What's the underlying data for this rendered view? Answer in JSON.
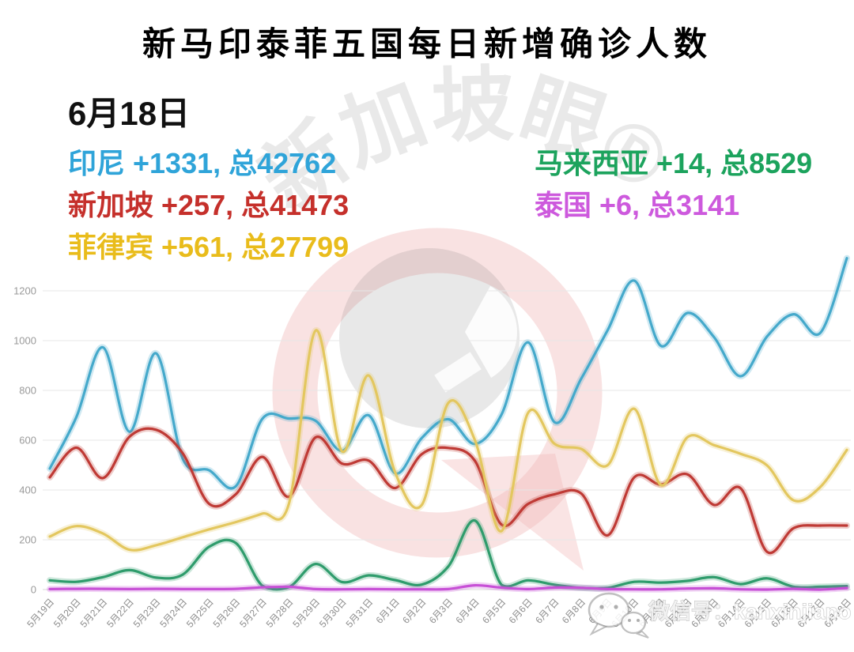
{
  "header": {
    "title": "新马印泰菲五国每日新增确诊人数",
    "date_label": "6月18日"
  },
  "legend": {
    "left": [
      {
        "id": "indonesia",
        "label": "印尼 +1331, 总42762",
        "color": "#2FA4D9"
      },
      {
        "id": "singapore",
        "label": "新加坡 +257, 总41473",
        "color": "#C5302B"
      },
      {
        "id": "philippines",
        "label": "菲律宾 +561, 总27799",
        "color": "#E9BC1B"
      }
    ],
    "right": [
      {
        "id": "malaysia",
        "label": "马来西亚 +14, 总8529",
        "color": "#1CA35D"
      },
      {
        "id": "thailand",
        "label": "泰国 +6, 总3141",
        "color": "#CD59DD"
      }
    ]
  },
  "watermark": {
    "brand": "新加坡眼®",
    "wechat": "微信号：kanxinjiapo"
  },
  "chart_data": {
    "type": "line",
    "smooth": true,
    "title": "新马印泰菲五国每日新增确诊人数",
    "xlabel": "",
    "ylabel": "",
    "ylim": [
      0,
      1300
    ],
    "yticks": [
      0,
      200,
      400,
      600,
      800,
      1000,
      1200
    ],
    "grid": true,
    "legend_position": "top-text-lines",
    "categories": [
      "5月19日",
      "5月20日",
      "5月21日",
      "5月22日",
      "5月23日",
      "5月24日",
      "5月25日",
      "5月26日",
      "5月27日",
      "5月28日",
      "5月29日",
      "5月30日",
      "5月31日",
      "6月1日",
      "6月2日",
      "6月3日",
      "6月4日",
      "6月5日",
      "6月6日",
      "6月7日",
      "6月8日",
      "6月9日",
      "6月10日",
      "6月11日",
      "6月12日",
      "6月13日",
      "6月14日",
      "6月15日",
      "6月16日",
      "6月17日",
      "6月18日"
    ],
    "series": [
      {
        "id": "indonesia",
        "name": "印尼",
        "color": "#45A9CB",
        "values": [
          486,
          693,
          973,
          634,
          949,
          526,
          479,
          415,
          686,
          687,
          678,
          557,
          700,
          467,
          609,
          684,
          585,
          703,
          993,
          672,
          847,
          1043,
          1241,
          979,
          1111,
          1014,
          857,
          1017,
          1106,
          1031,
          1331
        ]
      },
      {
        "id": "malaysia",
        "name": "马来西亚",
        "color": "#2F9C6C",
        "values": [
          37,
          31,
          50,
          78,
          48,
          60,
          172,
          187,
          15,
          10,
          103,
          30,
          57,
          38,
          20,
          93,
          277,
          19,
          37,
          19,
          7,
          7,
          31,
          28,
          35,
          50,
          22,
          45,
          11,
          11,
          14
        ]
      },
      {
        "id": "singapore",
        "name": "新加坡",
        "color": "#BF3A35",
        "values": [
          451,
          570,
          448,
          614,
          642,
          548,
          344,
          383,
          533,
          373,
          611,
          506,
          518,
          408,
          544,
          569,
          517,
          261,
          344,
          383,
          386,
          218,
          451,
          422,
          463,
          340,
          407,
          151,
          247,
          257,
          257
        ]
      },
      {
        "id": "thailand",
        "name": "泰国",
        "color": "#C750D6",
        "values": [
          2,
          3,
          3,
          2,
          3,
          2,
          2,
          3,
          9,
          11,
          2,
          1,
          2,
          1,
          1,
          2,
          17,
          8,
          2,
          8,
          7,
          2,
          1,
          1,
          4,
          5,
          1,
          0,
          3,
          0,
          6
        ]
      },
      {
        "id": "philippines",
        "name": "菲律宾",
        "color": "#E3C75F",
        "values": [
          213,
          255,
          225,
          160,
          178,
          210,
          242,
          271,
          305,
          345,
          1040,
          555,
          860,
          470,
          340,
          750,
          600,
          235,
          710,
          585,
          565,
          500,
          726,
          420,
          612,
          580,
          545,
          498,
          358,
          412,
          561
        ]
      }
    ]
  }
}
